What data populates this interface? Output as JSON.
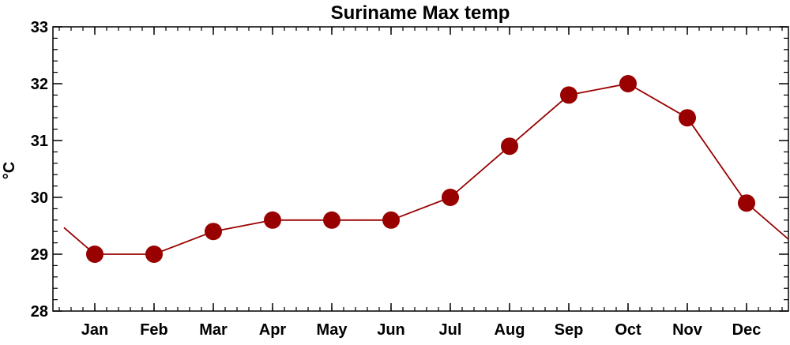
{
  "chart_data": {
    "type": "line",
    "title": "Suriname Max temp",
    "xlabel": "",
    "ylabel": "°C",
    "categories": [
      "Jan",
      "Feb",
      "Mar",
      "Apr",
      "May",
      "Jun",
      "Jul",
      "Aug",
      "Sep",
      "Oct",
      "Nov",
      "Dec"
    ],
    "series": [
      {
        "values": [
          29.0,
          29.0,
          29.4,
          29.6,
          29.6,
          29.6,
          30.0,
          30.9,
          31.8,
          32.0,
          31.4,
          29.9
        ],
        "color": "#990000"
      }
    ],
    "ylim": [
      28,
      33
    ],
    "yticks": [
      28,
      29,
      30,
      31,
      32,
      33
    ],
    "ytick_labels": [
      "28",
      "29",
      "30",
      "31",
      "32",
      "33"
    ],
    "grid": false,
    "legend": "none",
    "line_wraps_around_year": true
  }
}
